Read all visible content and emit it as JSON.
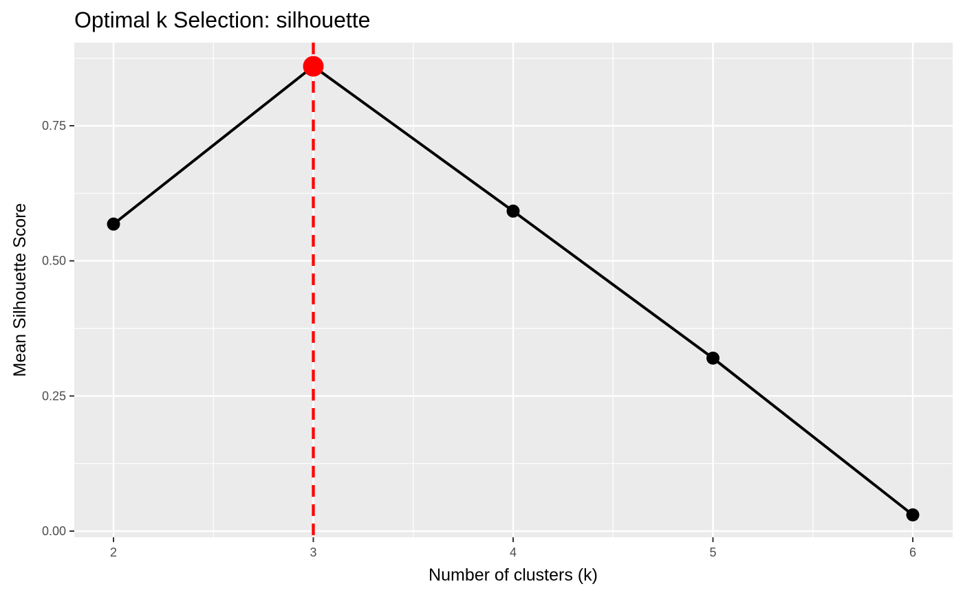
{
  "chart_data": {
    "type": "line",
    "title": "Optimal k Selection: silhouette",
    "xlabel": "Number of clusters (k)",
    "ylabel": "Mean Silhouette Score",
    "x": [
      2,
      3,
      4,
      5,
      6
    ],
    "x_tick_labels": [
      "2",
      "3",
      "4",
      "5",
      "6"
    ],
    "y_ticks": [
      0.0,
      0.25,
      0.5,
      0.75
    ],
    "y_tick_labels": [
      "0.00",
      "0.25",
      "0.50",
      "0.75"
    ],
    "series": [
      {
        "values": [
          0.568,
          0.86,
          0.592,
          0.32,
          0.03
        ]
      }
    ],
    "optimal_k": 3,
    "optimal_value": 0.86,
    "xlim": [
      1.8,
      6.2
    ],
    "ylim": [
      -0.0,
      0.89
    ],
    "grid": true,
    "colors": {
      "panel": "#ebebeb",
      "grid": "#ffffff",
      "line": "#000000",
      "point": "#000000",
      "highlight": "#ff0000"
    }
  }
}
